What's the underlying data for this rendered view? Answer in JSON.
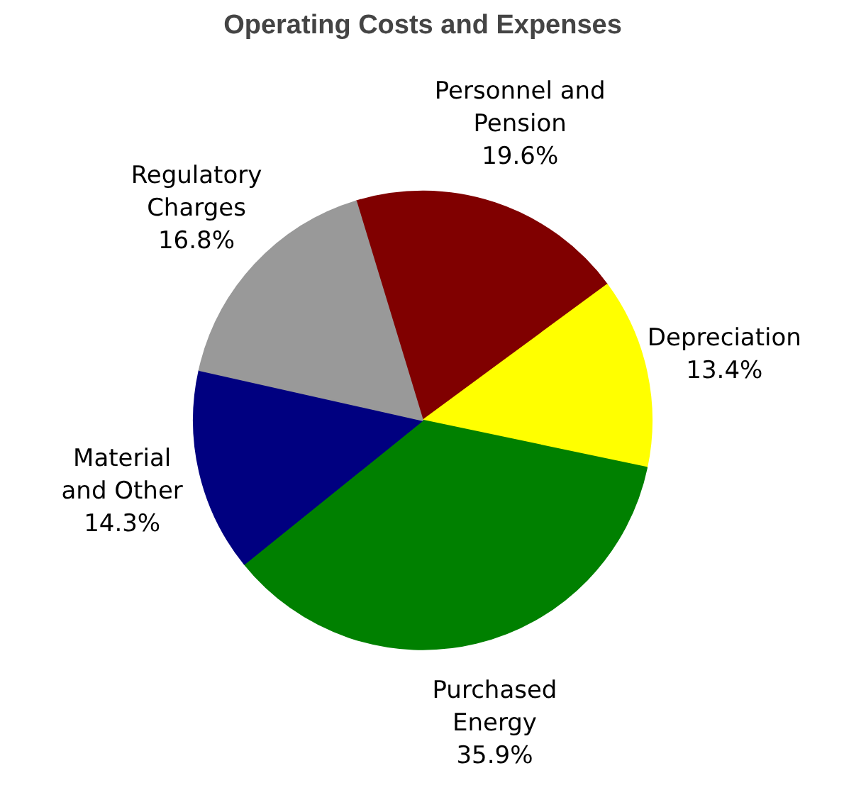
{
  "chart_data": {
    "type": "pie",
    "title": "Operating Costs and Expenses",
    "categories": [
      "Personnel and\nPension",
      "Depreciation",
      "Purchased\nEnergy",
      "Material\nand Other",
      "Regulatory\nCharges"
    ],
    "values": [
      19.6,
      13.4,
      35.9,
      14.3,
      16.8
    ],
    "colors": [
      "#800000",
      "#ffff00",
      "#008000",
      "#000080",
      "#999999"
    ],
    "value_labels": [
      "19.6%",
      "13.4%",
      "35.9%",
      "14.3%",
      "16.8%"
    ]
  }
}
